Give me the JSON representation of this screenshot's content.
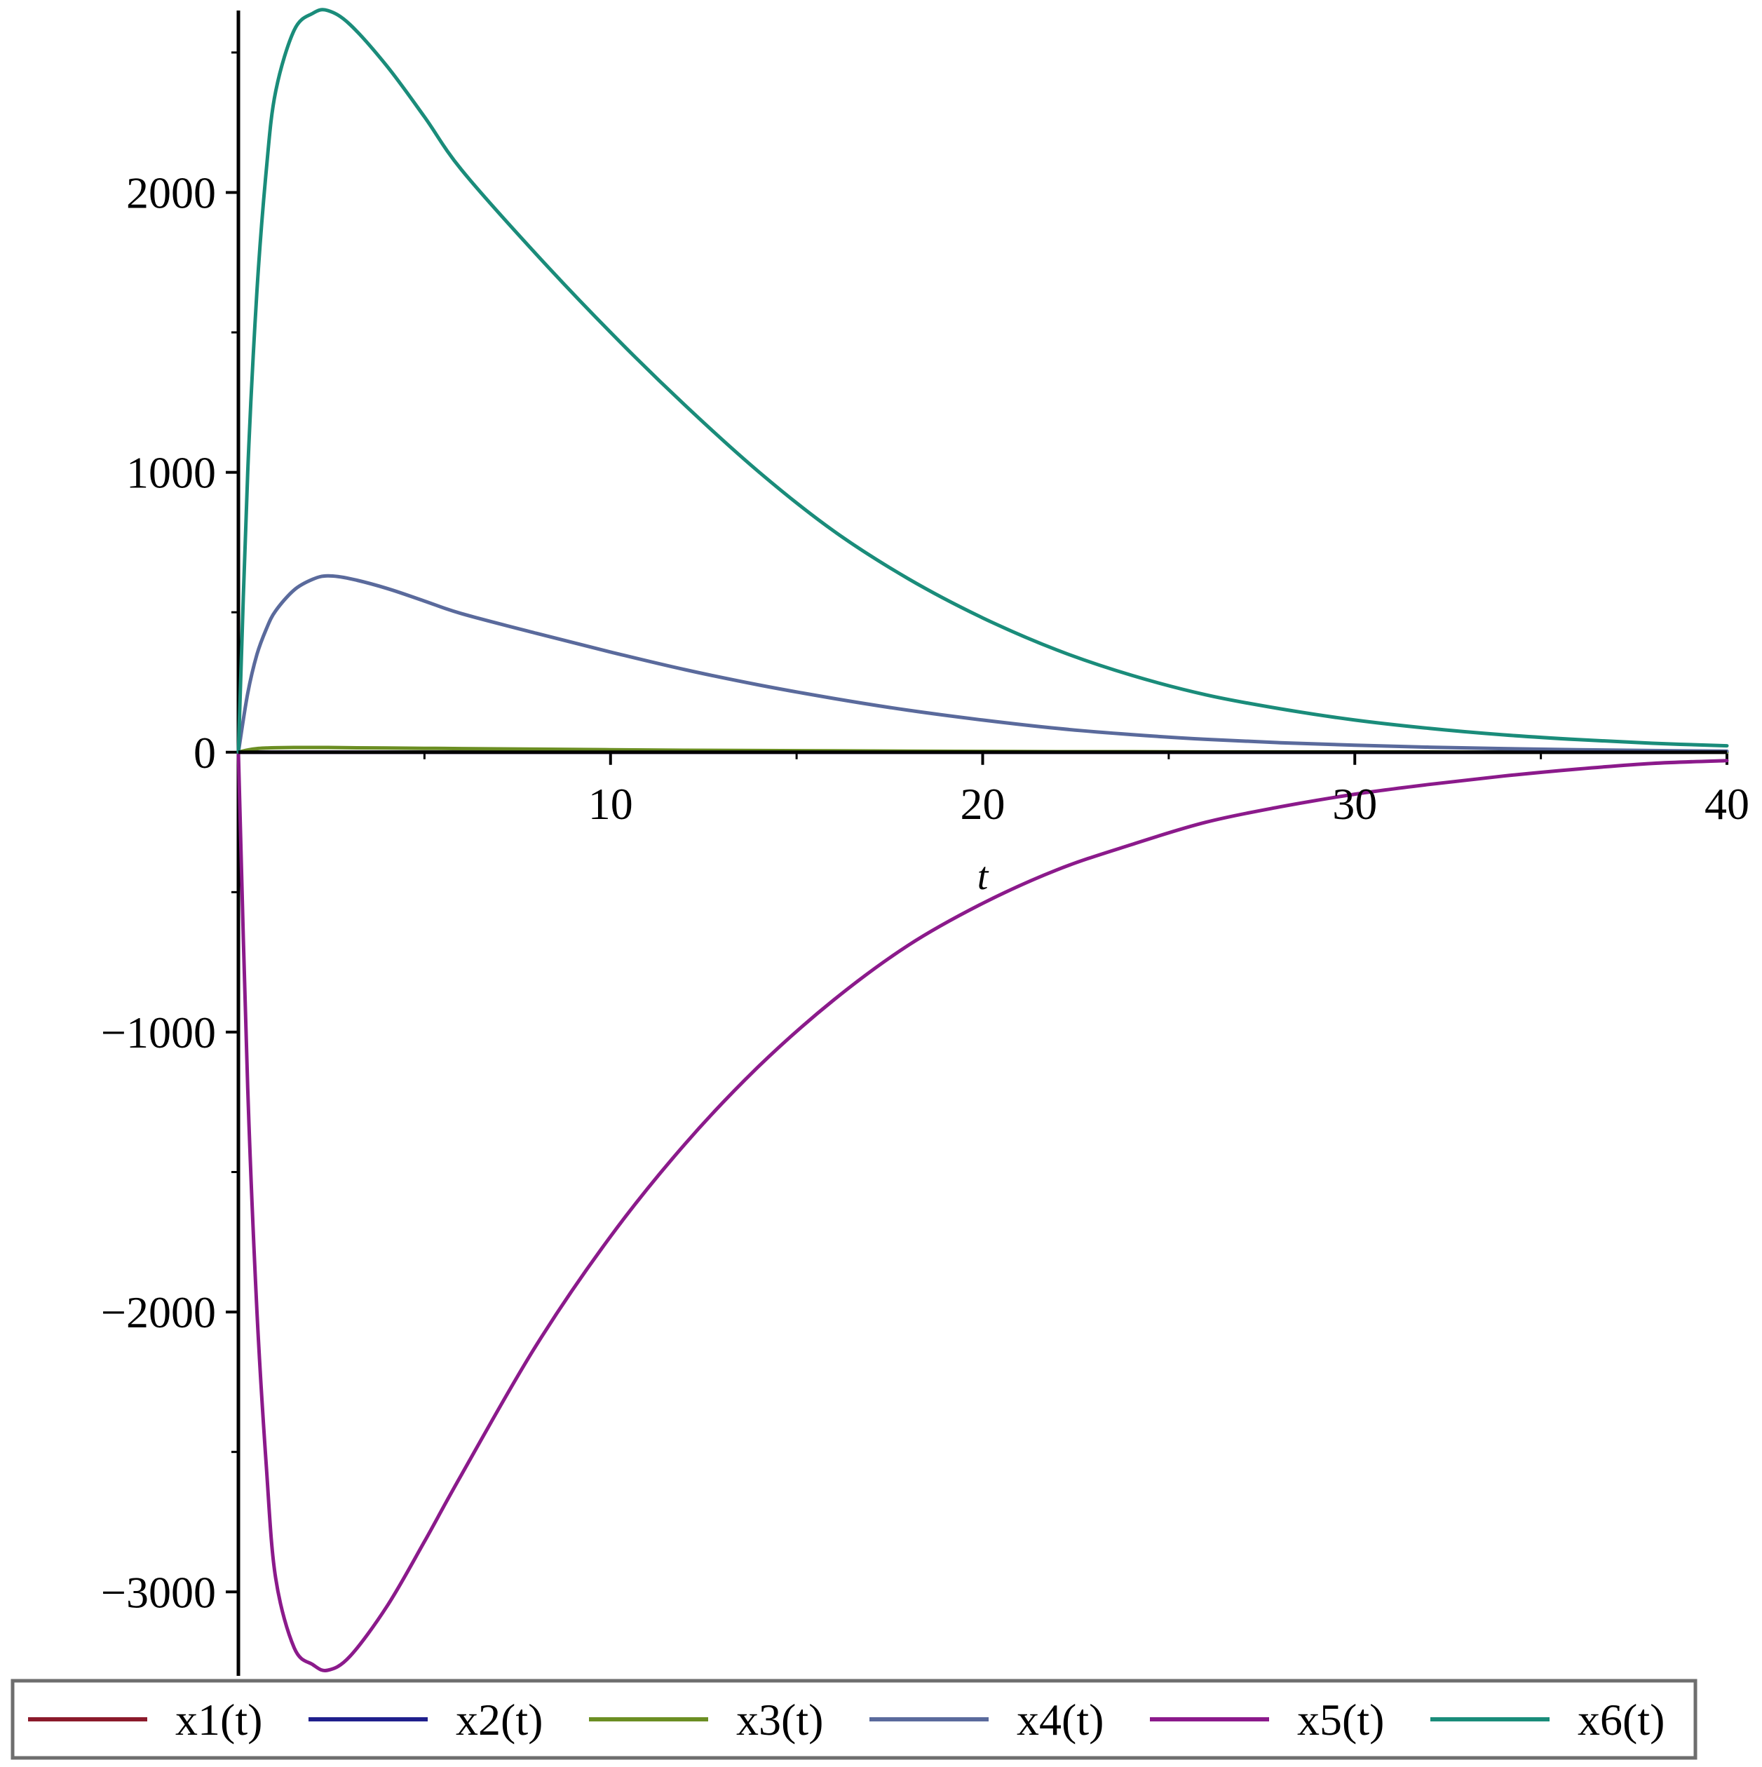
{
  "chart_data": {
    "type": "line",
    "title": "",
    "xlabel": "t",
    "ylabel": "",
    "xlim": [
      0,
      40
    ],
    "ylim": [
      -3300,
      2650
    ],
    "grid": false,
    "legend_position": "bottom",
    "x_ticks": [
      {
        "value": 10,
        "label": "10"
      },
      {
        "value": 20,
        "label": "20"
      },
      {
        "value": 30,
        "label": "30"
      },
      {
        "value": 40,
        "label": "40"
      }
    ],
    "x_minor_ticks": [
      5,
      15,
      25,
      35
    ],
    "y_ticks": [
      {
        "value": 2000,
        "label": "2000"
      },
      {
        "value": 1000,
        "label": "1000"
      },
      {
        "value": 0,
        "label": "0"
      },
      {
        "value": -1000,
        "label": "−1000"
      },
      {
        "value": -2000,
        "label": "−2000"
      },
      {
        "value": -3000,
        "label": "−3000"
      }
    ],
    "y_minor_ticks": [
      2500,
      1500,
      500,
      -500,
      -1500,
      -2500
    ],
    "x": [
      0,
      0.25,
      0.5,
      0.75,
      1,
      1.5,
      2,
      2.4,
      3,
      4,
      5,
      6,
      8,
      10,
      12,
      14,
      16,
      18,
      20,
      22,
      24,
      26,
      28,
      30,
      32,
      34,
      36,
      38,
      40
    ],
    "series": [
      {
        "name": "x1(t)",
        "color": "#8b1a2b",
        "values": [
          0,
          0,
          0,
          0,
          0,
          0,
          0,
          0,
          0,
          0,
          0,
          0,
          0,
          0,
          0,
          0,
          0,
          0,
          0,
          0,
          0,
          0,
          0,
          0,
          0,
          0,
          0,
          0,
          0
        ]
      },
      {
        "name": "x2(t)",
        "color": "#1f1f8c",
        "values": [
          0,
          0,
          0,
          0,
          0,
          0,
          0,
          0,
          0,
          0,
          0,
          0,
          0,
          0,
          0,
          0,
          0,
          0,
          0,
          0,
          0,
          0,
          0,
          0,
          0,
          0,
          0,
          0,
          0
        ]
      },
      {
        "name": "x3(t)",
        "color": "#6b8e23",
        "values": [
          0,
          8,
          13,
          15,
          16,
          17,
          17,
          17,
          16,
          15,
          14,
          13,
          11,
          9,
          7,
          6,
          5,
          4,
          3,
          2,
          2,
          1,
          1,
          1,
          1,
          0,
          0,
          0,
          0
        ]
      },
      {
        "name": "x4(t)",
        "color": "#5a6a9c",
        "values": [
          0,
          210,
          350,
          440,
          505,
          580,
          618,
          630,
          620,
          585,
          540,
          495,
          425,
          358,
          295,
          240,
          192,
          150,
          115,
          85,
          63,
          46,
          34,
          25,
          18,
          13,
          9,
          6,
          4
        ]
      },
      {
        "name": "x5(t)",
        "color": "#8b1a8b",
        "values": [
          0,
          -1200,
          -2000,
          -2550,
          -2950,
          -3200,
          -3260,
          -3280,
          -3230,
          -3050,
          -2820,
          -2580,
          -2120,
          -1730,
          -1400,
          -1120,
          -885,
          -690,
          -540,
          -420,
          -330,
          -250,
          -195,
          -150,
          -115,
          -85,
          -60,
          -40,
          -30
        ]
      },
      {
        "name": "x6(t)",
        "color": "#1a8c7a",
        "values": [
          0,
          1000,
          1650,
          2080,
          2360,
          2580,
          2640,
          2650,
          2600,
          2450,
          2270,
          2080,
          1780,
          1500,
          1240,
          1000,
          790,
          620,
          480,
          365,
          275,
          205,
          155,
          115,
          85,
          62,
          45,
          32,
          23
        ]
      }
    ]
  }
}
